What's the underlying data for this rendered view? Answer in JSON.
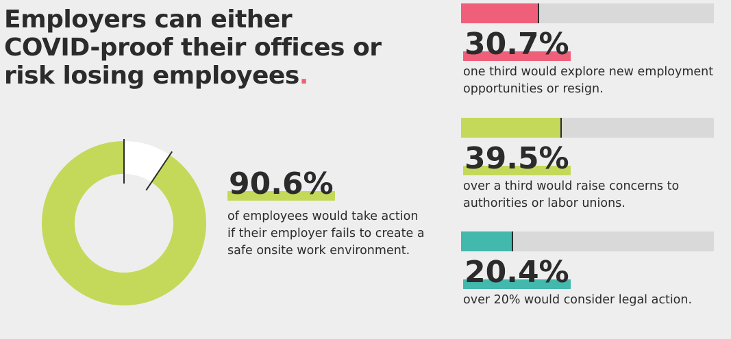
{
  "headline": {
    "text": "Employers can either COVID-proof their offices or risk losing employees",
    "dot": ".",
    "dot_color": "#ef5f7a"
  },
  "chart_data": [
    {
      "type": "pie",
      "series": [
        {
          "name": "",
          "values": [
            90.6,
            9.4
          ]
        }
      ],
      "colors": [
        "#c4d95a",
        "#ffffff"
      ],
      "value_label": "90.6%",
      "description": "of employees would take action if their employer fails to create a safe onsite work environment.",
      "highlight_color": "#c4d95a"
    },
    {
      "type": "bar",
      "orientation": "horizontal",
      "categories": [
        "30.7%",
        "39.5%",
        "20.4%"
      ],
      "values": [
        30.7,
        39.5,
        20.4
      ],
      "xlim": [
        0,
        100
      ],
      "colors": [
        "#ef5f7a",
        "#c4d95a",
        "#43b8ac"
      ],
      "track_color": "#d9d9d9",
      "descriptions": [
        "one third would explore new employment opportunities or resign.",
        "over a third would raise concerns to authorities or labor unions.",
        "over 20% would consider legal action."
      ]
    }
  ]
}
